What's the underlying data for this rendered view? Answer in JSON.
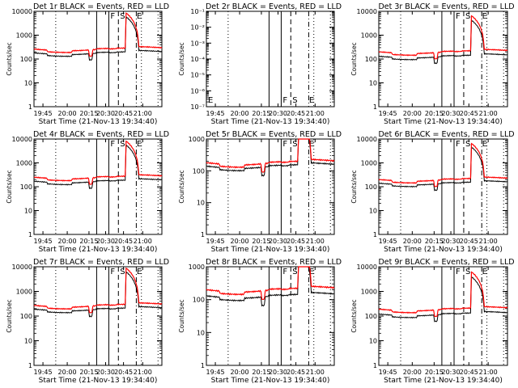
{
  "chart_data": [
    {
      "type": "line",
      "title": "Det 1r BLACK = Events, RED = LLD",
      "xlabel": "Start Time (21-Nov-13 19:34:40)",
      "ylabel": "Counts/sec",
      "yscale": "log",
      "ylim": [
        1,
        10000
      ],
      "ytick_labels": [
        "1",
        "10",
        "100",
        "1000",
        "10000"
      ],
      "x_ticks": [
        "19:45",
        "20:00",
        "20:15",
        "20:30",
        "20:45",
        "21:00"
      ],
      "markers": [
        "F",
        "S",
        "E"
      ],
      "series": [
        {
          "name": "BLACK = Events",
          "color": "#000000",
          "level": 180
        },
        {
          "name": "RED = LLD",
          "color": "#ff0000",
          "level": 260
        }
      ]
    },
    {
      "type": "line",
      "title": "Det 2r BLACK = Events, RED = LLD",
      "xlabel": "Start Time (21-Nov-13 19:34:40)",
      "ylabel": "Counts/sec",
      "yscale": "log",
      "ylim": [
        1e-07,
        0.1
      ],
      "ytick_labels": [
        "10⁻⁷",
        "10⁻⁶",
        "10⁻⁵",
        "10⁻⁴",
        "10⁻³",
        "10⁻²",
        "10⁻¹"
      ],
      "x_ticks": [
        "19:45",
        "20:00",
        "20:15",
        "20:30",
        "20:45",
        "21:00"
      ],
      "markers": [
        "F",
        "S",
        "E"
      ],
      "series": []
    },
    {
      "type": "line",
      "title": "Det 3r BLACK = Events, RED = LLD",
      "xlabel": "Start Time (21-Nov-13 19:34:40)",
      "ylabel": "Counts/sec",
      "yscale": "log",
      "ylim": [
        1,
        10000
      ],
      "ytick_labels": [
        "1",
        "10",
        "100",
        "1000",
        "10000"
      ],
      "x_ticks": [
        "19:45",
        "20:00",
        "20:15",
        "20:30",
        "20:45",
        "21:00"
      ],
      "markers": [
        "F",
        "S",
        "E"
      ],
      "series": [
        {
          "name": "BLACK = Events",
          "color": "#000000",
          "level": 130
        },
        {
          "name": "RED = LLD",
          "color": "#ff0000",
          "level": 200
        }
      ]
    },
    {
      "type": "line",
      "title": "Det 4r BLACK = Events, RED = LLD",
      "xlabel": "Start Time (21-Nov-13 19:34:40)",
      "ylabel": "Counts/sec",
      "yscale": "log",
      "ylim": [
        1,
        10000
      ],
      "ytick_labels": [
        "1",
        "10",
        "100",
        "1000",
        "10000"
      ],
      "x_ticks": [
        "19:45",
        "20:00",
        "20:15",
        "20:30",
        "20:45",
        "21:00"
      ],
      "markers": [
        "F",
        "S",
        "E"
      ],
      "series": [
        {
          "name": "BLACK = Events",
          "color": "#000000",
          "level": 170
        },
        {
          "name": "RED = LLD",
          "color": "#ff0000",
          "level": 250
        }
      ]
    },
    {
      "type": "line",
      "title": "Det 5r BLACK = Events, RED = LLD",
      "xlabel": "Start Time (21-Nov-13 19:34:40)",
      "ylabel": "Counts/sec",
      "yscale": "log",
      "ylim": [
        1,
        1000
      ],
      "ytick_labels": [
        "1",
        "10",
        "100",
        "1000"
      ],
      "x_ticks": [
        "19:45",
        "20:00",
        "20:15",
        "20:30",
        "20:45",
        "21:00"
      ],
      "markers": [
        "F",
        "S",
        "E"
      ],
      "series": [
        {
          "name": "BLACK = Events",
          "color": "#000000",
          "level": 140
        },
        {
          "name": "RED = LLD",
          "color": "#ff0000",
          "level": 180
        }
      ]
    },
    {
      "type": "line",
      "title": "Det 6r BLACK = Events, RED = LLD",
      "xlabel": "Start Time (21-Nov-13 19:34:40)",
      "ylabel": "Counts/sec",
      "yscale": "log",
      "ylim": [
        1,
        10000
      ],
      "ytick_labels": [
        "1",
        "10",
        "100",
        "1000",
        "10000"
      ],
      "x_ticks": [
        "19:45",
        "20:00",
        "20:15",
        "20:30",
        "20:45",
        "21:00"
      ],
      "markers": [
        "F",
        "S",
        "E"
      ],
      "series": [
        {
          "name": "BLACK = Events",
          "color": "#000000",
          "level": 140
        },
        {
          "name": "RED = LLD",
          "color": "#ff0000",
          "level": 200
        }
      ]
    },
    {
      "type": "line",
      "title": "Det 7r BLACK = Events, RED = LLD",
      "xlabel": "Start Time (21-Nov-13 19:34:40)",
      "ylabel": "Counts/sec",
      "yscale": "log",
      "ylim": [
        1,
        10000
      ],
      "ytick_labels": [
        "1",
        "10",
        "100",
        "1000",
        "10000"
      ],
      "x_ticks": [
        "19:45",
        "20:00",
        "20:15",
        "20:30",
        "20:45",
        "21:00"
      ],
      "markers": [
        "F",
        "S",
        "E"
      ],
      "series": [
        {
          "name": "BLACK = Events",
          "color": "#000000",
          "level": 190
        },
        {
          "name": "RED = LLD",
          "color": "#ff0000",
          "level": 270
        }
      ]
    },
    {
      "type": "line",
      "title": "Det 8r BLACK = Events, RED = LLD",
      "xlabel": "Start Time (21-Nov-13 19:34:40)",
      "ylabel": "Counts/sec",
      "yscale": "log",
      "ylim": [
        1,
        1000
      ],
      "ytick_labels": [
        "1",
        "10",
        "100",
        "1000"
      ],
      "x_ticks": [
        "19:45",
        "20:00",
        "20:15",
        "20:30",
        "20:45",
        "21:00"
      ],
      "markers": [
        "F",
        "S",
        "E"
      ],
      "series": [
        {
          "name": "BLACK = Events",
          "color": "#000000",
          "level": 130
        },
        {
          "name": "RED = LLD",
          "color": "#ff0000",
          "level": 200
        }
      ]
    },
    {
      "type": "line",
      "title": "Det 9r BLACK = Events, RED = LLD",
      "xlabel": "Start Time (21-Nov-13 19:34:40)",
      "ylabel": "Counts/sec",
      "yscale": "log",
      "ylim": [
        1,
        10000
      ],
      "ytick_labels": [
        "1",
        "10",
        "100",
        "1000",
        "10000"
      ],
      "x_ticks": [
        "19:45",
        "20:00",
        "20:15",
        "20:30",
        "20:45",
        "21:00"
      ],
      "markers": [
        "F",
        "S",
        "E"
      ],
      "series": [
        {
          "name": "BLACK = Events",
          "color": "#000000",
          "level": 120
        },
        {
          "name": "RED = LLD",
          "color": "#ff0000",
          "level": 190
        }
      ]
    }
  ]
}
